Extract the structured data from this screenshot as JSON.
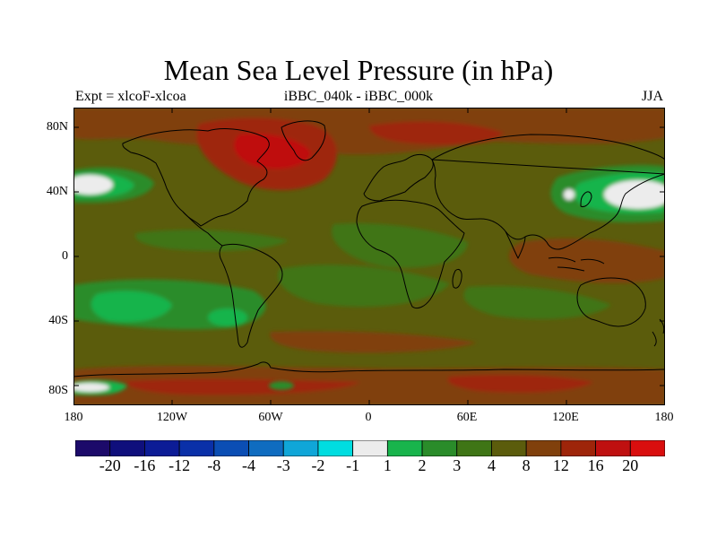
{
  "title": "Mean Sea Level Pressure (in hPa)",
  "subtitle_left": "Expt = xlcoF-xlcoa",
  "subtitle_center": "iBBC_040k - iBBC_000k",
  "subtitle_right": "JJA",
  "lat_ticks": [
    "80N",
    "40N",
    "0",
    "40S",
    "80S"
  ],
  "lon_ticks": [
    "180",
    "120W",
    "60W",
    "0",
    "60E",
    "120E",
    "180"
  ],
  "colorbar": {
    "labels": [
      "-20",
      "-16",
      "-12",
      "-8",
      "-4",
      "-3",
      "-2",
      "-1",
      "1",
      "2",
      "3",
      "4",
      "8",
      "12",
      "16",
      "20"
    ],
    "colors": [
      "#1c0a6a",
      "#0f0f7c",
      "#0c1c96",
      "#0a30a8",
      "#0b4eb4",
      "#0f6cc0",
      "#10a6d8",
      "#00dde0",
      "#ececec",
      "#18b44c",
      "#2a8c2a",
      "#3f7516",
      "#5b5c0c",
      "#80400c",
      "#9e250a",
      "#bf1010",
      "#d90e0e"
    ]
  },
  "colors": {
    "background_field": "#5b5c0c",
    "positive_high": "#80400c",
    "positive_higher": "#9e250a",
    "positive_highest": "#bf1010",
    "negative_low": "#3f7516",
    "negative_lower": "#2a8c2a",
    "negative_lowest": "#18b44c",
    "near_zero": "#ececec",
    "coastline": "#000000"
  }
}
